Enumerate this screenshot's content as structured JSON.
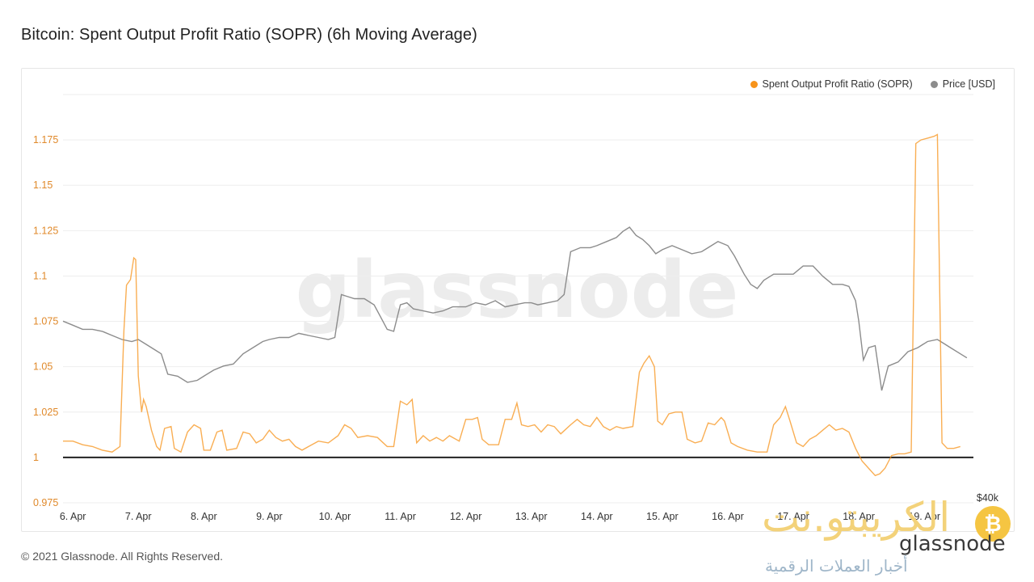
{
  "page": {
    "title": "Bitcoin: Spent Output Profit Ratio (SOPR) (6h Moving Average)",
    "footer": "© 2021 Glassnode. All Rights Reserved.",
    "watermark": "glassnode"
  },
  "colors": {
    "sopr": "#f7931a",
    "price": "#8c8c8c",
    "baseline": "#222222",
    "grid": "#eeeeee",
    "axis_text_left": "#e0892a",
    "axis_text": "#333333"
  },
  "legend": {
    "sopr_label": "Spent Output Profit Ratio (SOPR)",
    "price_label": "Price [USD]"
  },
  "overlay_logo": {
    "arabic_title": "الكريبتو.نت",
    "arabic_subtitle": "أخبار العملات الرقمية",
    "brand": "glassnode",
    "coin_symbol": "₿"
  },
  "chart_data": {
    "type": "line",
    "title": "Bitcoin: Spent Output Profit Ratio (SOPR) (6h Moving Average)",
    "x_tick_labels": [
      "6. Apr",
      "7. Apr",
      "8. Apr",
      "9. Apr",
      "10. Apr",
      "11. Apr",
      "12. Apr",
      "13. Apr",
      "14. Apr",
      "15. Apr",
      "16. Apr",
      "17. Apr",
      "18. Apr",
      "19. Apr"
    ],
    "x_range": [
      5.85,
      19.75
    ],
    "y_left": {
      "ticks": [
        0.975,
        1,
        1.025,
        1.05,
        1.075,
        1.1,
        1.125,
        1.15,
        1.175
      ],
      "tick_labels": [
        "0.975",
        "1",
        "1.025",
        "1.05",
        "1.075",
        "1.1",
        "1.125",
        "1.15",
        "1.175"
      ],
      "range": [
        0.975,
        1.2
      ]
    },
    "y_right": {
      "label": "$40k",
      "range": [
        50000,
        70000
      ]
    },
    "baseline": 1.0,
    "series": [
      {
        "name": "Spent Output Profit Ratio (SOPR)",
        "axis": "left",
        "points": [
          [
            5.85,
            1.009
          ],
          [
            6.0,
            1.009
          ],
          [
            6.15,
            1.007
          ],
          [
            6.3,
            1.006
          ],
          [
            6.45,
            1.004
          ],
          [
            6.6,
            1.003
          ],
          [
            6.72,
            1.006
          ],
          [
            6.78,
            1.07
          ],
          [
            6.82,
            1.095
          ],
          [
            6.88,
            1.098
          ],
          [
            6.93,
            1.11
          ],
          [
            6.96,
            1.109
          ],
          [
            7.0,
            1.045
          ],
          [
            7.05,
            1.025
          ],
          [
            7.08,
            1.032
          ],
          [
            7.12,
            1.028
          ],
          [
            7.2,
            1.015
          ],
          [
            7.28,
            1.006
          ],
          [
            7.33,
            1.004
          ],
          [
            7.4,
            1.016
          ],
          [
            7.5,
            1.017
          ],
          [
            7.55,
            1.005
          ],
          [
            7.65,
            1.003
          ],
          [
            7.75,
            1.014
          ],
          [
            7.85,
            1.018
          ],
          [
            7.95,
            1.016
          ],
          [
            8.0,
            1.004
          ],
          [
            8.1,
            1.004
          ],
          [
            8.2,
            1.014
          ],
          [
            8.28,
            1.015
          ],
          [
            8.35,
            1.004
          ],
          [
            8.5,
            1.005
          ],
          [
            8.6,
            1.014
          ],
          [
            8.7,
            1.013
          ],
          [
            8.8,
            1.008
          ],
          [
            8.9,
            1.01
          ],
          [
            9.0,
            1.015
          ],
          [
            9.1,
            1.011
          ],
          [
            9.2,
            1.009
          ],
          [
            9.3,
            1.01
          ],
          [
            9.4,
            1.006
          ],
          [
            9.5,
            1.004
          ],
          [
            9.6,
            1.006
          ],
          [
            9.75,
            1.009
          ],
          [
            9.9,
            1.008
          ],
          [
            10.05,
            1.012
          ],
          [
            10.15,
            1.018
          ],
          [
            10.25,
            1.016
          ],
          [
            10.35,
            1.011
          ],
          [
            10.5,
            1.012
          ],
          [
            10.65,
            1.011
          ],
          [
            10.8,
            1.006
          ],
          [
            10.9,
            1.006
          ],
          [
            11.0,
            1.031
          ],
          [
            11.1,
            1.029
          ],
          [
            11.18,
            1.032
          ],
          [
            11.25,
            1.008
          ],
          [
            11.35,
            1.012
          ],
          [
            11.45,
            1.009
          ],
          [
            11.55,
            1.011
          ],
          [
            11.65,
            1.009
          ],
          [
            11.75,
            1.012
          ],
          [
            11.9,
            1.009
          ],
          [
            12.0,
            1.021
          ],
          [
            12.1,
            1.021
          ],
          [
            12.18,
            1.022
          ],
          [
            12.25,
            1.01
          ],
          [
            12.35,
            1.007
          ],
          [
            12.5,
            1.007
          ],
          [
            12.6,
            1.021
          ],
          [
            12.7,
            1.021
          ],
          [
            12.78,
            1.03
          ],
          [
            12.85,
            1.018
          ],
          [
            12.95,
            1.017
          ],
          [
            13.05,
            1.018
          ],
          [
            13.15,
            1.014
          ],
          [
            13.25,
            1.018
          ],
          [
            13.35,
            1.017
          ],
          [
            13.45,
            1.013
          ],
          [
            13.6,
            1.018
          ],
          [
            13.7,
            1.021
          ],
          [
            13.8,
            1.018
          ],
          [
            13.9,
            1.017
          ],
          [
            14.0,
            1.022
          ],
          [
            14.1,
            1.017
          ],
          [
            14.2,
            1.015
          ],
          [
            14.3,
            1.017
          ],
          [
            14.4,
            1.016
          ],
          [
            14.55,
            1.017
          ],
          [
            14.65,
            1.047
          ],
          [
            14.72,
            1.052
          ],
          [
            14.8,
            1.056
          ],
          [
            14.88,
            1.05
          ],
          [
            14.93,
            1.02
          ],
          [
            15.0,
            1.018
          ],
          [
            15.1,
            1.024
          ],
          [
            15.2,
            1.025
          ],
          [
            15.3,
            1.025
          ],
          [
            15.38,
            1.01
          ],
          [
            15.5,
            1.008
          ],
          [
            15.6,
            1.009
          ],
          [
            15.7,
            1.019
          ],
          [
            15.8,
            1.018
          ],
          [
            15.9,
            1.022
          ],
          [
            15.95,
            1.02
          ],
          [
            16.05,
            1.008
          ],
          [
            16.15,
            1.006
          ],
          [
            16.3,
            1.004
          ],
          [
            16.45,
            1.003
          ],
          [
            16.6,
            1.003
          ],
          [
            16.7,
            1.018
          ],
          [
            16.8,
            1.022
          ],
          [
            16.88,
            1.028
          ],
          [
            16.95,
            1.02
          ],
          [
            17.05,
            1.008
          ],
          [
            17.15,
            1.006
          ],
          [
            17.25,
            1.01
          ],
          [
            17.35,
            1.012
          ],
          [
            17.45,
            1.015
          ],
          [
            17.55,
            1.018
          ],
          [
            17.65,
            1.015
          ],
          [
            17.75,
            1.016
          ],
          [
            17.85,
            1.014
          ],
          [
            17.95,
            1.005
          ],
          [
            18.05,
            0.998
          ],
          [
            18.15,
            0.994
          ],
          [
            18.25,
            0.99
          ],
          [
            18.32,
            0.991
          ],
          [
            18.4,
            0.994
          ],
          [
            18.5,
            1.001
          ],
          [
            18.6,
            1.002
          ],
          [
            18.7,
            1.002
          ],
          [
            18.8,
            1.003
          ],
          [
            18.87,
            1.173
          ],
          [
            18.95,
            1.175
          ],
          [
            19.05,
            1.176
          ],
          [
            19.15,
            1.177
          ],
          [
            19.2,
            1.178
          ],
          [
            19.27,
            1.008
          ],
          [
            19.35,
            1.005
          ],
          [
            19.45,
            1.005
          ],
          [
            19.55,
            1.006
          ]
        ]
      },
      {
        "name": "Price [USD]",
        "axis": "right",
        "points": [
          [
            5.85,
            58900
          ],
          [
            6.0,
            58700
          ],
          [
            6.15,
            58500
          ],
          [
            6.3,
            58500
          ],
          [
            6.45,
            58400
          ],
          [
            6.6,
            58200
          ],
          [
            6.75,
            58000
          ],
          [
            6.9,
            57900
          ],
          [
            7.0,
            58000
          ],
          [
            7.1,
            57800
          ],
          [
            7.25,
            57500
          ],
          [
            7.35,
            57300
          ],
          [
            7.45,
            56300
          ],
          [
            7.6,
            56200
          ],
          [
            7.75,
            55900
          ],
          [
            7.9,
            56000
          ],
          [
            8.0,
            56200
          ],
          [
            8.15,
            56500
          ],
          [
            8.3,
            56700
          ],
          [
            8.45,
            56800
          ],
          [
            8.6,
            57300
          ],
          [
            8.75,
            57600
          ],
          [
            8.9,
            57900
          ],
          [
            9.0,
            58000
          ],
          [
            9.15,
            58100
          ],
          [
            9.3,
            58100
          ],
          [
            9.45,
            58300
          ],
          [
            9.6,
            58200
          ],
          [
            9.75,
            58100
          ],
          [
            9.9,
            58000
          ],
          [
            10.0,
            58100
          ],
          [
            10.1,
            60200
          ],
          [
            10.2,
            60100
          ],
          [
            10.3,
            60000
          ],
          [
            10.45,
            60000
          ],
          [
            10.6,
            59700
          ],
          [
            10.7,
            59100
          ],
          [
            10.8,
            58500
          ],
          [
            10.9,
            58400
          ],
          [
            11.0,
            59700
          ],
          [
            11.1,
            59800
          ],
          [
            11.2,
            59500
          ],
          [
            11.35,
            59400
          ],
          [
            11.5,
            59300
          ],
          [
            11.65,
            59400
          ],
          [
            11.8,
            59600
          ],
          [
            12.0,
            59600
          ],
          [
            12.15,
            59800
          ],
          [
            12.3,
            59700
          ],
          [
            12.45,
            59900
          ],
          [
            12.6,
            59600
          ],
          [
            12.75,
            59700
          ],
          [
            12.9,
            59800
          ],
          [
            13.0,
            59800
          ],
          [
            13.1,
            59700
          ],
          [
            13.25,
            59800
          ],
          [
            13.4,
            59900
          ],
          [
            13.5,
            60200
          ],
          [
            13.6,
            62300
          ],
          [
            13.75,
            62500
          ],
          [
            13.9,
            62500
          ],
          [
            14.0,
            62600
          ],
          [
            14.15,
            62800
          ],
          [
            14.3,
            63000
          ],
          [
            14.4,
            63300
          ],
          [
            14.5,
            63500
          ],
          [
            14.6,
            63100
          ],
          [
            14.7,
            62900
          ],
          [
            14.8,
            62600
          ],
          [
            14.9,
            62200
          ],
          [
            15.0,
            62400
          ],
          [
            15.15,
            62600
          ],
          [
            15.3,
            62400
          ],
          [
            15.45,
            62200
          ],
          [
            15.6,
            62300
          ],
          [
            15.7,
            62500
          ],
          [
            15.85,
            62800
          ],
          [
            16.0,
            62600
          ],
          [
            16.1,
            62100
          ],
          [
            16.25,
            61200
          ],
          [
            16.35,
            60700
          ],
          [
            16.45,
            60500
          ],
          [
            16.55,
            60900
          ],
          [
            16.7,
            61200
          ],
          [
            16.85,
            61200
          ],
          [
            17.0,
            61200
          ],
          [
            17.15,
            61600
          ],
          [
            17.3,
            61600
          ],
          [
            17.45,
            61100
          ],
          [
            17.6,
            60700
          ],
          [
            17.75,
            60700
          ],
          [
            17.85,
            60600
          ],
          [
            17.95,
            59900
          ],
          [
            18.0,
            58900
          ],
          [
            18.07,
            57000
          ],
          [
            18.15,
            57600
          ],
          [
            18.25,
            57700
          ],
          [
            18.35,
            55500
          ],
          [
            18.45,
            56700
          ],
          [
            18.6,
            56900
          ],
          [
            18.75,
            57400
          ],
          [
            18.9,
            57600
          ],
          [
            19.05,
            57900
          ],
          [
            19.2,
            58000
          ],
          [
            19.3,
            57800
          ],
          [
            19.4,
            57600
          ],
          [
            19.55,
            57300
          ],
          [
            19.65,
            57100
          ]
        ]
      }
    ]
  }
}
